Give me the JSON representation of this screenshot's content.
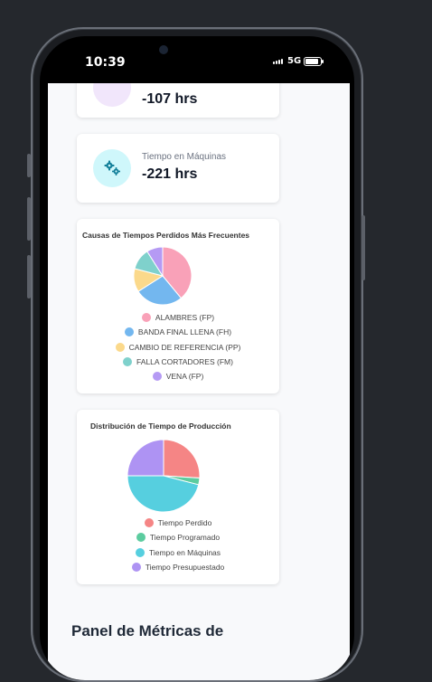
{
  "status_bar": {
    "time": "10:39",
    "network": "5G"
  },
  "metrics": [
    {
      "label": "",
      "value": "-107 hrs",
      "icon": "clock-icon"
    },
    {
      "label": "Tiempo en Máquinas",
      "value": "-221 hrs",
      "icon": "gears-icon"
    }
  ],
  "charts": {
    "causas": {
      "title": "Causas de Tiempos Perdidos Más Frecuentes",
      "legend": [
        {
          "label": "ALAMBRES (FP)",
          "color": "#f9a1b8"
        },
        {
          "label": "BANDA FINAL LLENA (FH)",
          "color": "#73b7ef"
        },
        {
          "label": "CAMBIO DE REFERENCIA (PP)",
          "color": "#fbd98b"
        },
        {
          "label": "FALLA CORTADORES (FM)",
          "color": "#7fd1cc"
        },
        {
          "label": "VENA (FP)",
          "color": "#b59af4"
        }
      ]
    },
    "distribucion": {
      "title": "Distribución de Tiempo de Producción",
      "legend": [
        {
          "label": "Tiempo Perdido",
          "color": "#f58585"
        },
        {
          "label": "Tiempo Programado",
          "color": "#5ccc9f"
        },
        {
          "label": "Tiempo en Máquinas",
          "color": "#56cfdf"
        },
        {
          "label": "Tiempo Presupuestado",
          "color": "#ae93f3"
        }
      ]
    }
  },
  "chart_data": [
    {
      "type": "pie",
      "title": "Causas de Tiempos Perdidos Más Frecuentes",
      "categories": [
        "ALAMBRES (FP)",
        "BANDA FINAL LLENA (FH)",
        "CAMBIO DE REFERENCIA (PP)",
        "FALLA CORTADORES (FM)",
        "VENA (FP)"
      ],
      "values": [
        39,
        27,
        13,
        12,
        9
      ],
      "colors": [
        "#f9a1b8",
        "#73b7ef",
        "#fbd98b",
        "#7fd1cc",
        "#b59af4"
      ],
      "legend": "bottom"
    },
    {
      "type": "pie",
      "title": "Distribución de Tiempo de Producción",
      "categories": [
        "Tiempo Perdido",
        "Tiempo Programado",
        "Tiempo en Máquinas",
        "Tiempo Presupuestado"
      ],
      "values": [
        26,
        3,
        46,
        25
      ],
      "colors": [
        "#f58585",
        "#5ccc9f",
        "#56cfdf",
        "#ae93f3"
      ],
      "legend": "bottom"
    }
  ],
  "section": {
    "heading": "Panel de Métricas de"
  }
}
